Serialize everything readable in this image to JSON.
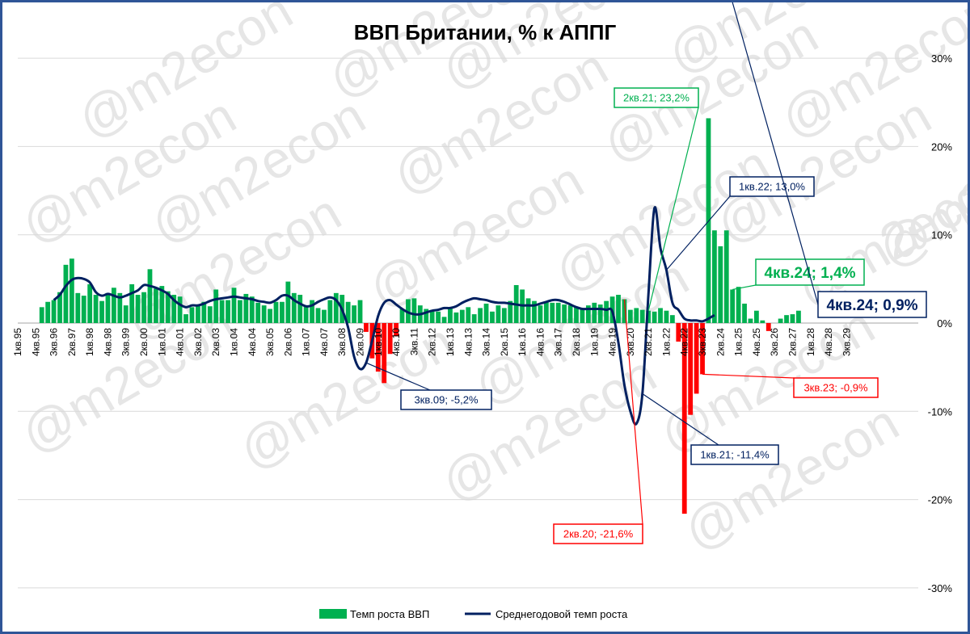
{
  "chart_data": {
    "type": "bar+line",
    "title": "ВВП Британии, % к АППГ",
    "watermark": "@m2econ",
    "ylim": [
      -30,
      30
    ],
    "yticks": [
      30,
      20,
      10,
      0,
      -10,
      -20,
      -30
    ],
    "ytick_labels": [
      "30%",
      "20%",
      "10%",
      "0%",
      "-10%",
      "-20%",
      "-30%"
    ],
    "x_tick_labels": [
      "1кв.95",
      "4кв.95",
      "3кв.96",
      "2кв.97",
      "1кв.98",
      "4кв.98",
      "3кв.99",
      "2кв.00",
      "1кв.01",
      "4кв.01",
      "3кв.02",
      "2кв.03",
      "1кв.04",
      "4кв.04",
      "3кв.05",
      "2кв.06",
      "1кв.07",
      "4кв.07",
      "3кв.08",
      "2кв.09",
      "1кв.10",
      "4кв.10",
      "3кв.11",
      "2кв.12",
      "1кв.13",
      "4кв.13",
      "3кв.14",
      "2кв.15",
      "1кв.16",
      "4кв.16",
      "3кв.17",
      "2кв.18",
      "1кв.19",
      "4кв.19",
      "3кв.20",
      "2кв.21",
      "1кв.22",
      "4кв.22",
      "3кв.23",
      "2кв.24",
      "1кв.25",
      "4кв.25",
      "3кв.26",
      "2кв.27",
      "1кв.28",
      "4кв.28",
      "3кв.29"
    ],
    "colors": {
      "bar_positive": "#00b050",
      "bar_negative": "#ff0000",
      "line": "#002060"
    },
    "series": [
      {
        "name": "Темп роста ВВП",
        "start": "1кв.95",
        "values": [
          0,
          0,
          0,
          0,
          1.8,
          2.4,
          2.6,
          3.5,
          6.6,
          7.3,
          3.4,
          3.1,
          4.4,
          3.2,
          2.5,
          3.4,
          4.0,
          3.4,
          2.0,
          4.4,
          3.2,
          3.5,
          6.1,
          3.9,
          4.2,
          3.6,
          3.2,
          3.0,
          1.0,
          1.8,
          2.1,
          2.4,
          1.9,
          3.8,
          2.6,
          2.6,
          4.0,
          2.6,
          3.3,
          3.0,
          2.3,
          2.0,
          1.6,
          2.4,
          2.4,
          4.7,
          3.4,
          3.2,
          2.0,
          2.6,
          1.7,
          1.5,
          2.6,
          3.4,
          3.2,
          2.4,
          2.0,
          2.6,
          -1.0,
          -4.0,
          -5.5,
          -6.8,
          -3.5,
          -1.5,
          1.6,
          2.7,
          2.8,
          2.0,
          1.6,
          1.4,
          1.3,
          0.7,
          1.7,
          1.2,
          1.5,
          1.8,
          1.0,
          1.7,
          2.2,
          1.3,
          2.0,
          1.7,
          2.5,
          4.3,
          3.8,
          2.8,
          2.5,
          2.0,
          2.4,
          2.3,
          2.3,
          2.1,
          2.0,
          1.8,
          1.7,
          2.0,
          2.3,
          2.1,
          2.5,
          3.0,
          3.2,
          2.7,
          1.5,
          1.7,
          1.5,
          1.4,
          1.3,
          1.7,
          1.4,
          0.9,
          -2.1,
          -21.6,
          -10.4,
          -8.0,
          -5.8,
          23.2,
          10.5,
          8.7,
          10.5,
          3.8,
          4.1,
          2.2,
          0.5,
          1.4,
          0.3,
          -0.9,
          0,
          0.5,
          0.9,
          1.0,
          1.4
        ]
      },
      {
        "name": "Среднегодовой темп роста",
        "start": "3кв.96",
        "values": [
          2.6,
          3.2,
          4.2,
          4.9,
          5.1,
          5.0,
          4.6,
          3.5,
          3.1,
          3.3,
          3.1,
          2.9,
          3.1,
          3.4,
          3.7,
          4.3,
          4.2,
          4.0,
          3.7,
          3.3,
          2.6,
          2.1,
          1.8,
          2.0,
          2.0,
          2.2,
          2.5,
          2.7,
          2.8,
          2.9,
          3.0,
          2.9,
          2.8,
          2.7,
          2.5,
          2.4,
          2.3,
          2.6,
          3.1,
          3.1,
          2.6,
          2.2,
          1.9,
          2.0,
          2.4,
          2.7,
          2.9,
          2.6,
          1.5,
          -0.5,
          -3.8,
          -5.2,
          -4.5,
          -2.0,
          0.8,
          2.3,
          2.6,
          2.1,
          1.6,
          1.2,
          1.0,
          1.0,
          1.2,
          1.4,
          1.5,
          1.7,
          1.7,
          1.9,
          2.3,
          2.6,
          2.8,
          2.7,
          2.6,
          2.4,
          2.3,
          2.3,
          2.2,
          2.1,
          2.0,
          2.0,
          2.0,
          2.2,
          2.4,
          2.6,
          2.6,
          2.4,
          2.1,
          1.8,
          1.6,
          1.6,
          1.6,
          1.6,
          1.5,
          1.3,
          -2.2,
          -7.0,
          -10.0,
          -11.4,
          -8.0,
          3.2,
          13.0,
          8.5,
          6.0,
          2.3,
          1.5,
          0.5,
          0.3,
          0.3,
          0.2,
          0.5,
          0.9
        ]
      }
    ],
    "annotations": [
      {
        "label": "2кв.21; 23,2%",
        "color": "#00b050",
        "series": 0,
        "at": "2кв.21"
      },
      {
        "label": "1кв.22; 13,0%",
        "color": "#002060",
        "series": 1,
        "at": "1кв.22"
      },
      {
        "label": "4кв.24; 1,4%",
        "color": "#00b050",
        "series": 0,
        "at": "4кв.24"
      },
      {
        "label": "4кв.24; 0,9%",
        "color": "#002060",
        "series": 1,
        "at": "4кв.24"
      },
      {
        "label": "3кв.09; -5,2%",
        "color": "#002060",
        "series": 1,
        "at": "3кв.09"
      },
      {
        "label": "3кв.23; -0,9%",
        "color": "#ff0000",
        "series": 0,
        "at": "3кв.23"
      },
      {
        "label": "1кв.21; -11,4%",
        "color": "#002060",
        "series": 1,
        "at": "1кв.21"
      },
      {
        "label": "2кв.20; -21,6%",
        "color": "#ff0000",
        "series": 0,
        "at": "2кв.20"
      }
    ],
    "legend": {
      "position": "bottom",
      "items": [
        {
          "label": "Темп роста ВВП",
          "kind": "bar",
          "color": "#00b050"
        },
        {
          "label": "Среднегодовой темп роста",
          "kind": "line",
          "color": "#002060"
        }
      ]
    },
    "grid": true
  }
}
